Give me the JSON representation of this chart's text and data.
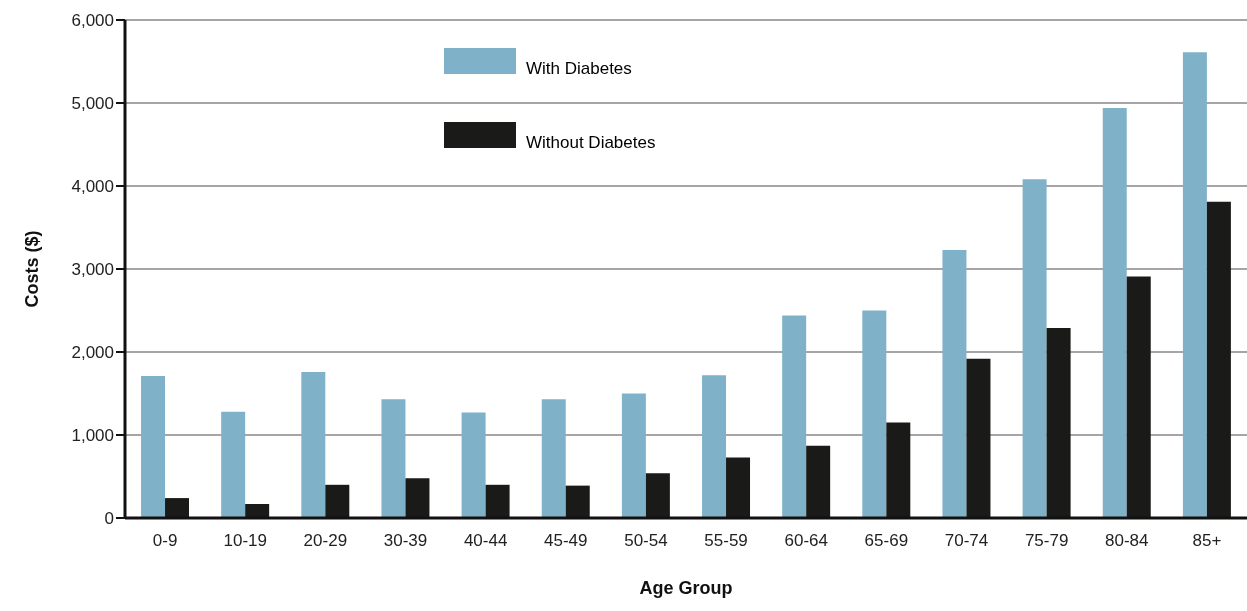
{
  "chart_data": {
    "type": "bar",
    "xlabel": "Age Group",
    "ylabel": "Costs ($)",
    "categories": [
      "0-9",
      "10-19",
      "20-29",
      "30-39",
      "40-44",
      "45-49",
      "50-54",
      "55-59",
      "60-64",
      "65-69",
      "70-74",
      "75-79",
      "80-84",
      "85+"
    ],
    "series": [
      {
        "name": "With Diabetes",
        "color": "#7fb2c9",
        "values": [
          1710,
          1280,
          1760,
          1430,
          1270,
          1430,
          1500,
          1720,
          2440,
          2500,
          3230,
          4080,
          4940,
          5610
        ]
      },
      {
        "name": "Without Diabetes",
        "color": "#1a1a18",
        "values": [
          240,
          170,
          400,
          480,
          400,
          390,
          540,
          730,
          870,
          1150,
          1920,
          2290,
          2910,
          3810
        ]
      }
    ],
    "ylim": [
      0,
      6000
    ],
    "yticks": [
      0,
      {
        "value": 1000,
        "label": "1,000"
      },
      {
        "value": 2000,
        "label": "2,000"
      },
      {
        "value": 3000,
        "label": "3,000"
      },
      {
        "value": 4000,
        "label": "4,000"
      },
      {
        "value": 5000,
        "label": "5,000"
      },
      {
        "value": 6000,
        "label": "6,000"
      }
    ],
    "grid": "y",
    "legend": "top"
  }
}
